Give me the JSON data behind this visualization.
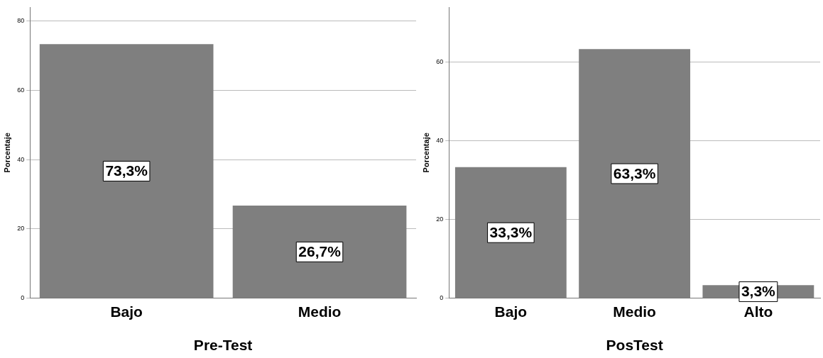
{
  "chart_data": [
    {
      "type": "bar",
      "xlabel": "Pre-Test",
      "ylabel": "Porcentaje",
      "categories": [
        "Bajo",
        "Medio"
      ],
      "values": [
        73.3,
        26.7
      ],
      "color": "#7f7f7f",
      "value_labels": [
        "73,3%",
        "26,7%"
      ],
      "ylim": [
        0,
        84
      ],
      "yticks": [
        0,
        20,
        40,
        60,
        80
      ],
      "grid": "y"
    },
    {
      "type": "bar",
      "xlabel": "PosTest",
      "ylabel": "Porcentaje",
      "categories": [
        "Bajo",
        "Medio",
        "Alto"
      ],
      "values": [
        33.3,
        63.3,
        3.3
      ],
      "color": "#7f7f7f",
      "value_labels": [
        "33,3%",
        "63,3%",
        "3,3%"
      ],
      "ylim": [
        0,
        74
      ],
      "yticks": [
        0,
        20,
        40,
        60
      ],
      "grid": "y"
    }
  ]
}
